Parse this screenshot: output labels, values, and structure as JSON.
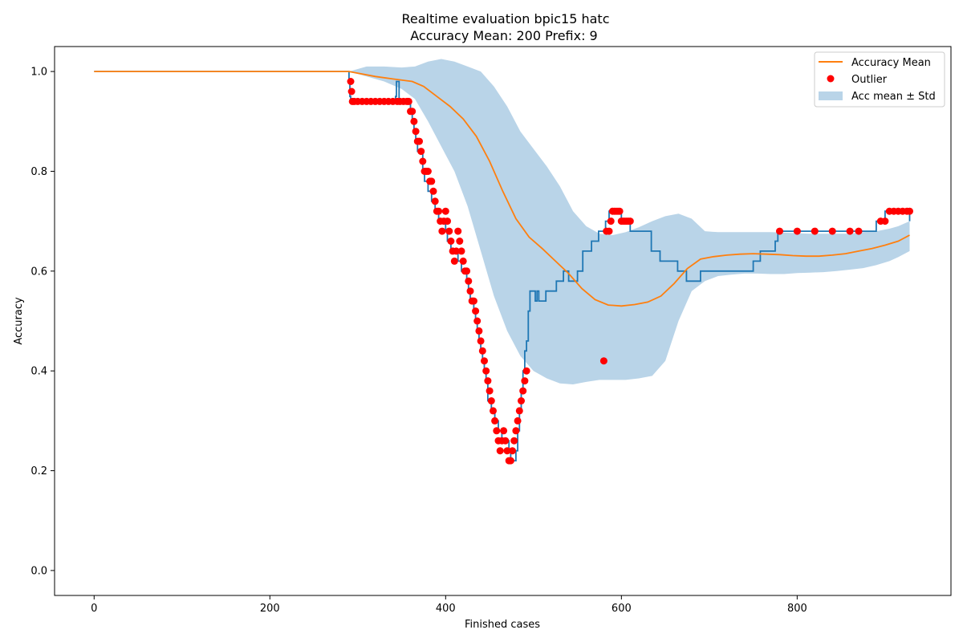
{
  "chart_data": {
    "type": "line",
    "title": "Realtime evaluation bpic15 hatc",
    "subtitle": "Accuracy Mean: 200 Prefix: 9",
    "xlabel": "Finished cases",
    "ylabel": "Accuracy",
    "xlim": [
      -45,
      975
    ],
    "ylim": [
      -0.05,
      1.05
    ],
    "x_ticks": [
      0,
      200,
      400,
      600,
      800
    ],
    "y_ticks": [
      0.0,
      0.2,
      0.4,
      0.6,
      0.8,
      1.0
    ],
    "x_tick_labels": [
      "0",
      "200",
      "400",
      "600",
      "800"
    ],
    "y_tick_labels": [
      "0.0",
      "0.2",
      "0.4",
      "0.6",
      "0.8",
      "1.0"
    ],
    "grid": false,
    "legend": {
      "location": "upper right",
      "entries": [
        "Accuracy Mean",
        "Outlier",
        "Acc mean ± Std"
      ]
    },
    "colors": {
      "accuracy": "#1f77b4",
      "mean": "#ff7f0e",
      "outlier": "#ff0000",
      "band": "#b9d4e8"
    },
    "series": [
      {
        "kind": "step-line",
        "x": [
          0,
          290,
          291,
          292,
          343,
          344,
          346,
          347,
          350,
          352,
          360,
          362,
          364,
          366,
          368,
          374,
          376,
          380,
          384,
          388,
          392,
          396,
          400,
          402,
          406,
          410,
          414,
          418,
          420,
          424,
          426,
          428,
          430,
          432,
          434,
          436,
          438,
          440,
          442,
          444,
          446,
          448,
          452,
          456,
          460,
          464,
          468,
          472,
          474,
          478,
          480,
          482,
          484,
          486,
          488,
          490,
          492,
          494,
          496,
          500,
          502,
          504,
          506,
          510,
          514,
          520,
          526,
          534,
          540,
          550,
          556,
          566,
          574,
          582,
          586,
          600,
          610,
          618,
          628,
          634,
          644,
          664,
          674,
          690,
          700,
          750,
          758,
          775,
          778,
          790,
          865,
          880,
          890,
          900,
          905,
          928
        ],
        "y": [
          1.0,
          0.98,
          0.95,
          0.94,
          0.95,
          0.98,
          0.98,
          0.94,
          0.94,
          0.94,
          0.92,
          0.9,
          0.88,
          0.86,
          0.84,
          0.8,
          0.78,
          0.76,
          0.74,
          0.72,
          0.7,
          0.7,
          0.68,
          0.66,
          0.64,
          0.64,
          0.62,
          0.6,
          0.6,
          0.58,
          0.56,
          0.54,
          0.54,
          0.52,
          0.5,
          0.48,
          0.46,
          0.44,
          0.42,
          0.4,
          0.38,
          0.34,
          0.32,
          0.3,
          0.28,
          0.26,
          0.26,
          0.24,
          0.22,
          0.22,
          0.24,
          0.28,
          0.32,
          0.36,
          0.4,
          0.44,
          0.46,
          0.52,
          0.56,
          0.56,
          0.54,
          0.56,
          0.54,
          0.54,
          0.56,
          0.56,
          0.58,
          0.6,
          0.58,
          0.6,
          0.64,
          0.66,
          0.68,
          0.7,
          0.72,
          0.7,
          0.68,
          0.68,
          0.68,
          0.64,
          0.62,
          0.6,
          0.58,
          0.6,
          0.6,
          0.62,
          0.64,
          0.66,
          0.68,
          0.68,
          0.68,
          0.68,
          0.7,
          0.72,
          0.72,
          0.7
        ]
      },
      {
        "name": "Accuracy Mean",
        "kind": "line",
        "x": [
          0,
          290,
          320,
          340,
          362,
          375,
          390,
          405,
          420,
          435,
          450,
          465,
          480,
          495,
          510,
          525,
          540,
          555,
          570,
          585,
          600,
          615,
          630,
          645,
          660,
          675,
          690,
          705,
          720,
          735,
          750,
          765,
          780,
          795,
          810,
          825,
          840,
          855,
          870,
          885,
          900,
          915,
          928
        ],
        "y": [
          1.0,
          1.0,
          0.99,
          0.985,
          0.98,
          0.97,
          0.95,
          0.93,
          0.905,
          0.87,
          0.82,
          0.76,
          0.705,
          0.668,
          0.645,
          0.62,
          0.595,
          0.565,
          0.543,
          0.532,
          0.53,
          0.533,
          0.538,
          0.55,
          0.575,
          0.605,
          0.624,
          0.629,
          0.632,
          0.634,
          0.635,
          0.634,
          0.633,
          0.631,
          0.63,
          0.63,
          0.632,
          0.635,
          0.64,
          0.645,
          0.652,
          0.66,
          0.672
        ]
      },
      {
        "name": "Outlier",
        "kind": "points",
        "x": [
          292,
          293,
          294,
          296,
          300,
          305,
          310,
          315,
          320,
          325,
          330,
          335,
          340,
          345,
          348,
          352,
          356,
          358,
          360,
          362,
          364,
          366,
          368,
          370,
          372,
          374,
          376,
          378,
          380,
          382,
          384,
          386,
          388,
          390,
          392,
          394,
          396,
          398,
          400,
          402,
          404,
          406,
          408,
          410,
          412,
          414,
          416,
          418,
          420,
          422,
          424,
          426,
          428,
          430,
          432,
          434,
          436,
          438,
          440,
          442,
          444,
          446,
          448,
          450,
          452,
          454,
          456,
          458,
          460,
          462,
          464,
          466,
          468,
          470,
          472,
          474,
          476,
          478,
          480,
          482,
          484,
          486,
          488,
          490,
          492,
          580,
          583,
          586,
          588,
          590,
          592,
          594,
          596,
          598,
          600,
          602,
          604,
          606,
          608,
          610,
          780,
          800,
          820,
          840,
          860,
          870,
          895,
          900,
          905,
          910,
          915,
          920,
          925,
          928
        ],
        "y": [
          0.98,
          0.96,
          0.94,
          0.94,
          0.94,
          0.94,
          0.94,
          0.94,
          0.94,
          0.94,
          0.94,
          0.94,
          0.94,
          0.94,
          0.94,
          0.94,
          0.94,
          0.94,
          0.92,
          0.92,
          0.9,
          0.88,
          0.86,
          0.86,
          0.84,
          0.82,
          0.8,
          0.8,
          0.8,
          0.78,
          0.78,
          0.76,
          0.74,
          0.72,
          0.72,
          0.7,
          0.68,
          0.7,
          0.72,
          0.7,
          0.68,
          0.66,
          0.64,
          0.62,
          0.64,
          0.68,
          0.66,
          0.64,
          0.62,
          0.6,
          0.6,
          0.58,
          0.56,
          0.54,
          0.54,
          0.52,
          0.5,
          0.48,
          0.46,
          0.44,
          0.42,
          0.4,
          0.38,
          0.36,
          0.34,
          0.32,
          0.3,
          0.28,
          0.26,
          0.24,
          0.26,
          0.28,
          0.26,
          0.24,
          0.22,
          0.22,
          0.24,
          0.26,
          0.28,
          0.3,
          0.32,
          0.34,
          0.36,
          0.38,
          0.4,
          0.42,
          0.68,
          0.68,
          0.7,
          0.72,
          0.72,
          0.72,
          0.72,
          0.72,
          0.7,
          0.7,
          0.7,
          0.7,
          0.7,
          0.7,
          0.68,
          0.68,
          0.68,
          0.68,
          0.68,
          0.68,
          0.7,
          0.7,
          0.72,
          0.72,
          0.72,
          0.72,
          0.72,
          0.72
        ]
      },
      {
        "name": "Acc mean ± Std",
        "kind": "band",
        "x": [
          290,
          310,
          330,
          350,
          365,
          380,
          395,
          410,
          425,
          440,
          455,
          470,
          485,
          500,
          515,
          530,
          545,
          560,
          575,
          590,
          605,
          620,
          635,
          650,
          665,
          680,
          695,
          710,
          725,
          740,
          755,
          770,
          785,
          800,
          815,
          830,
          845,
          860,
          875,
          890,
          905,
          915,
          928
        ],
        "upper": [
          1.0,
          1.01,
          1.01,
          1.008,
          1.01,
          1.02,
          1.025,
          1.02,
          1.01,
          1.0,
          0.97,
          0.93,
          0.88,
          0.845,
          0.81,
          0.77,
          0.72,
          0.69,
          0.675,
          0.672,
          0.678,
          0.688,
          0.7,
          0.71,
          0.715,
          0.705,
          0.68,
          0.678,
          0.678,
          0.678,
          0.678,
          0.678,
          0.677,
          0.676,
          0.675,
          0.675,
          0.675,
          0.675,
          0.678,
          0.68,
          0.685,
          0.69,
          0.7
        ],
        "lower": [
          1.0,
          0.99,
          0.98,
          0.965,
          0.945,
          0.9,
          0.85,
          0.8,
          0.73,
          0.64,
          0.55,
          0.48,
          0.43,
          0.4,
          0.385,
          0.375,
          0.373,
          0.378,
          0.382,
          0.382,
          0.382,
          0.385,
          0.39,
          0.42,
          0.5,
          0.56,
          0.58,
          0.59,
          0.593,
          0.595,
          0.595,
          0.594,
          0.594,
          0.596,
          0.597,
          0.598,
          0.6,
          0.603,
          0.606,
          0.612,
          0.62,
          0.628,
          0.64
        ]
      }
    ]
  }
}
